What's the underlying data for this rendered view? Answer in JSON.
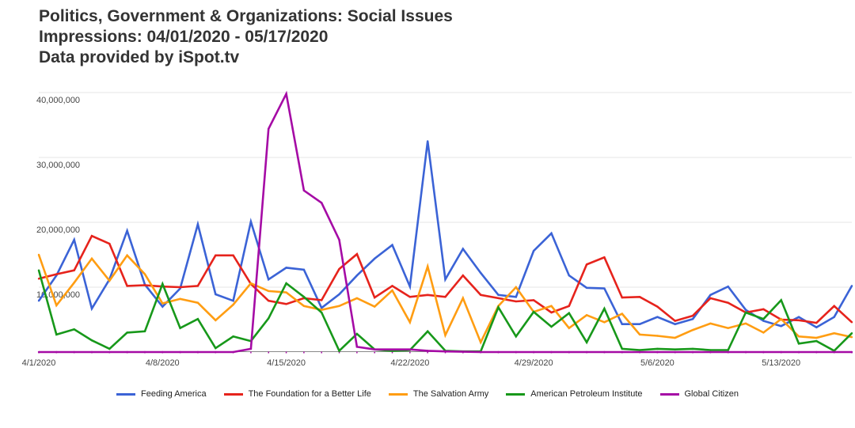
{
  "chart_data": {
    "type": "line",
    "title": "Politics, Government & Organizations: Social Issues",
    "subtitle": "Impressions: 04/01/2020 - 05/17/2020",
    "source": "Data provided by iSpot.tv",
    "xlabel": "",
    "ylabel": "",
    "ylim": [
      0,
      40000000
    ],
    "yticks": [
      0,
      10000000,
      20000000,
      30000000,
      40000000
    ],
    "ytick_labels": [
      "",
      "10,000,000",
      "20,000,000",
      "30,000,000",
      "40,000,000"
    ],
    "x_start": "4/1/2020",
    "x_end": "5/17/2020",
    "num_days": 47,
    "xtick_labels": [
      {
        "day_index": 0,
        "label": "4/1/2020"
      },
      {
        "day_index": 7,
        "label": "4/8/2020"
      },
      {
        "day_index": 14,
        "label": "4/15/2020"
      },
      {
        "day_index": 21,
        "label": "4/22/2020"
      },
      {
        "day_index": 28,
        "label": "4/29/2020"
      },
      {
        "day_index": 35,
        "label": "5/6/2020"
      },
      {
        "day_index": 42,
        "label": "5/13/2020"
      }
    ],
    "grid": true,
    "legend_position": "bottom",
    "series": [
      {
        "name": "Feeding America",
        "color": "#3b63d6",
        "values": [
          7.9,
          11.8,
          17.3,
          6.7,
          11.2,
          18.7,
          10.4,
          7.0,
          9.8,
          19.7,
          8.9,
          7.9,
          20.1,
          11.2,
          13.0,
          12.7,
          6.8,
          8.9,
          11.8,
          14.4,
          16.5,
          10.1,
          32.5,
          11.2,
          15.9,
          12.2,
          8.8,
          8.5,
          15.6,
          18.3,
          11.8,
          9.9,
          9.8,
          4.3,
          4.3,
          5.4,
          4.3,
          5.1,
          8.8,
          10.1,
          6.5,
          4.8,
          4.0,
          5.4,
          3.8,
          5.4,
          10.2
        ]
      },
      {
        "name": "The Foundation for a Better Life",
        "color": "#e6231c",
        "values": [
          11.3,
          12.0,
          12.6,
          17.9,
          16.7,
          10.2,
          10.3,
          10.1,
          10.0,
          10.2,
          14.9,
          14.9,
          10.5,
          7.9,
          7.4,
          8.3,
          8.0,
          12.8,
          15.1,
          8.4,
          10.2,
          8.5,
          8.8,
          8.5,
          11.8,
          8.8,
          8.3,
          7.8,
          8.0,
          6.1,
          7.1,
          13.5,
          14.6,
          8.4,
          8.5,
          7.0,
          4.8,
          5.6,
          8.3,
          7.6,
          6.1,
          6.6,
          5.0,
          4.9,
          4.5,
          7.1,
          4.6
        ]
      },
      {
        "name": "The Salvation Army",
        "color": "#ff9d12",
        "values": [
          15.0,
          7.2,
          10.7,
          14.4,
          11.0,
          14.9,
          12.0,
          7.5,
          8.2,
          7.6,
          4.9,
          7.3,
          10.6,
          9.4,
          9.2,
          7.1,
          6.5,
          7.1,
          8.3,
          7.0,
          9.5,
          4.6,
          13.2,
          2.6,
          8.3,
          1.5,
          7.1,
          10.0,
          6.2,
          7.1,
          3.7,
          5.7,
          4.6,
          5.9,
          2.7,
          2.5,
          2.2,
          3.4,
          4.4,
          3.7,
          4.4,
          3.0,
          5.1,
          2.4,
          2.2,
          2.9,
          2.3
        ]
      },
      {
        "name": "American Petroleum Institute",
        "color": "#17981a",
        "values": [
          12.6,
          2.7,
          3.5,
          1.8,
          0.5,
          3.0,
          3.2,
          10.5,
          3.7,
          5.1,
          0.6,
          2.4,
          1.7,
          5.2,
          10.6,
          8.5,
          6.1,
          0.2,
          2.8,
          0.4,
          0.2,
          0.3,
          3.2,
          0.2,
          0.1,
          0.1,
          6.9,
          2.4,
          6.2,
          3.9,
          6.0,
          1.5,
          6.7,
          0.5,
          0.3,
          0.5,
          0.4,
          0.5,
          0.3,
          0.3,
          6.1,
          5.1,
          8.0,
          1.3,
          1.7,
          0.2,
          2.9
        ]
      },
      {
        "name": "Global Citizen",
        "color": "#a50ba5",
        "values": [
          0,
          0,
          0,
          0,
          0,
          0,
          0,
          0,
          0,
          0,
          0,
          0,
          0.5,
          34.4,
          39.8,
          24.9,
          23.0,
          17.3,
          0.8,
          0.4,
          0.4,
          0.4,
          0.2,
          0.1,
          0.05,
          0,
          0,
          0,
          0,
          0,
          0,
          0,
          0,
          0,
          0,
          0,
          0,
          0,
          0,
          0,
          0,
          0,
          0,
          0,
          0,
          0,
          0
        ]
      }
    ],
    "value_unit_multiplier": 1000000
  }
}
